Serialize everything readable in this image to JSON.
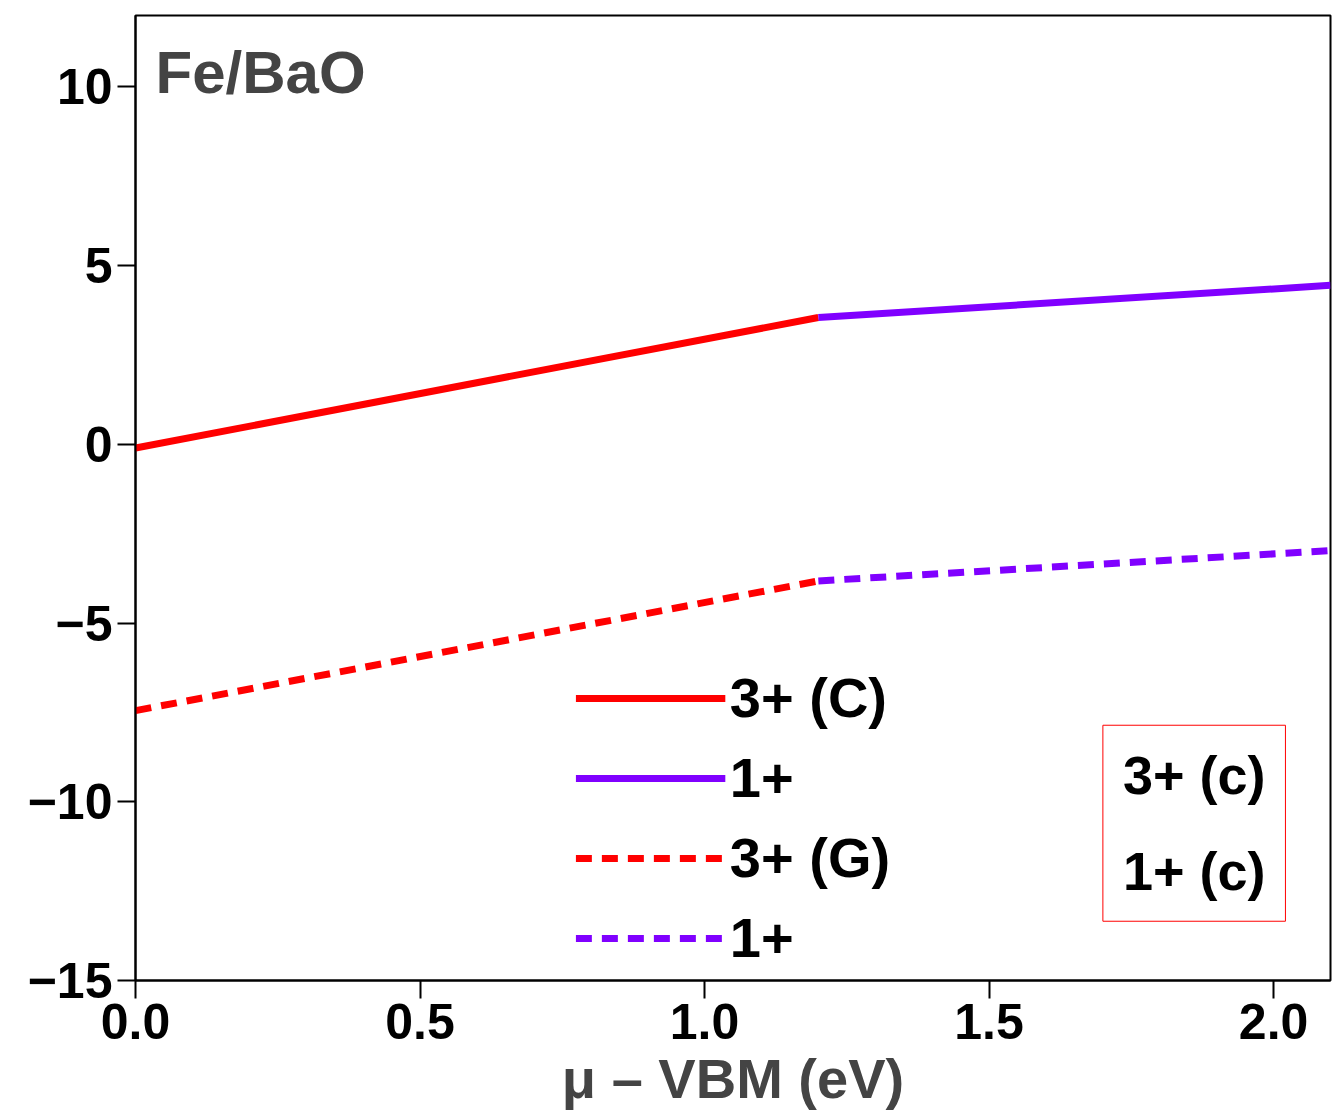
{
  "chart_data": {
    "type": "line",
    "title": "Fe/BaO",
    "xlabel": "μ – VBM (eV)",
    "xlim": [
      0,
      2.1
    ],
    "ylim": [
      -15,
      12
    ],
    "xticks": [
      {
        "value": 0,
        "label": "0.0"
      },
      0.5,
      {
        "value": 1,
        "label": "1.0"
      },
      1.5,
      {
        "value": 2,
        "label": "2.0"
      }
    ],
    "yticks": [
      -15,
      -10,
      -5,
      0,
      5,
      10
    ],
    "series": [
      {
        "name": "3+ (C)",
        "color": "#ff0000",
        "x": [
          0,
          1.2
        ],
        "values": [
          -0.1,
          3.55
        ],
        "line_style": "solid"
      },
      {
        "name": "1+",
        "color": "#8000ff",
        "x": [
          1.2,
          2.1
        ],
        "values": [
          3.55,
          4.45
        ],
        "line_style": "solid"
      },
      {
        "name": "3+ (G)",
        "color": "#ff0000",
        "x": [
          0,
          1.2
        ],
        "values": [
          -7.45,
          -3.82
        ],
        "line_style": "dashed"
      },
      {
        "name": "1+",
        "color": "#8000ff",
        "x": [
          1.2,
          2.1
        ],
        "values": [
          -3.82,
          -2.97
        ],
        "line_style": "dashed"
      }
    ],
    "annotations": [
      "3+ (c)",
      "1+ (c)"
    ],
    "legend": "bottom",
    "grid": false
  }
}
